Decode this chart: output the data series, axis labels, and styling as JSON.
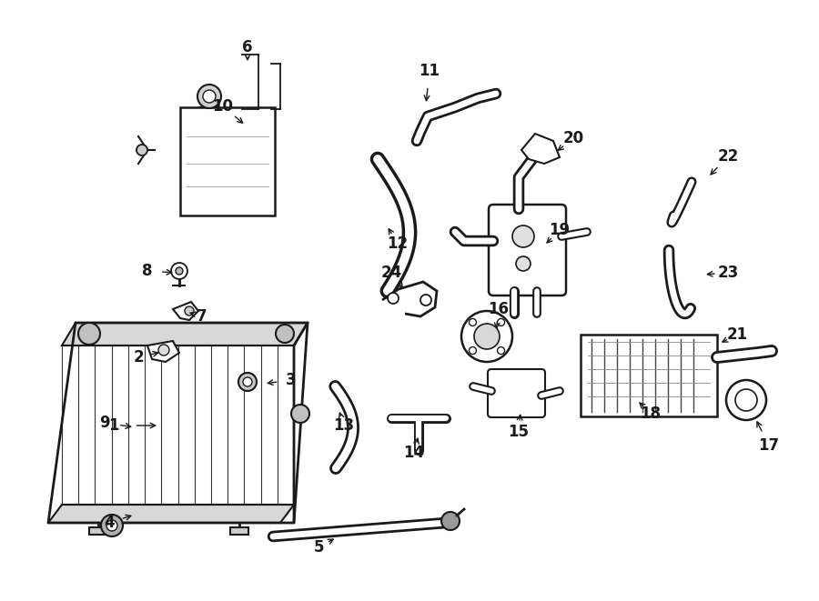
{
  "bg_color": "#ffffff",
  "line_color": "#1a1a1a",
  "figsize": [
    9.0,
    6.61
  ],
  "dpi": 100,
  "label_fontsize": 12
}
